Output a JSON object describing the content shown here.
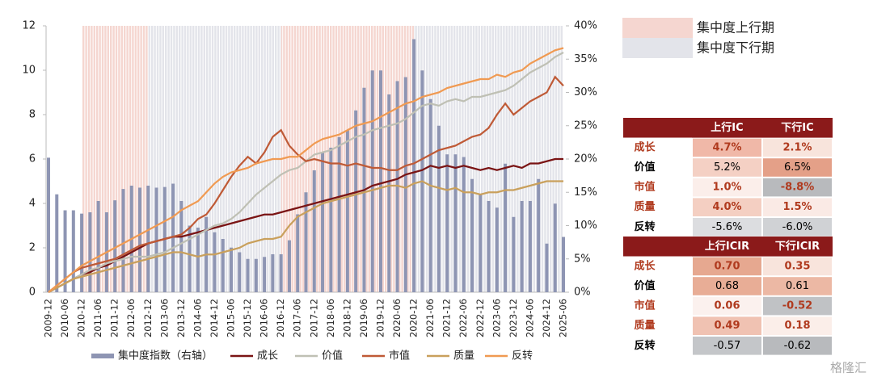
{
  "chart_data": {
    "type": "combo",
    "categories": [
      "2009-12",
      null,
      "2010-06",
      null,
      "2010-12",
      null,
      "2011-06",
      null,
      "2011-12",
      null,
      "2012-06",
      null,
      "2012-12",
      null,
      "2013-06",
      null,
      "2013-12",
      null,
      "2014-06",
      null,
      "2014-12",
      null,
      "2015-06",
      null,
      "2015-12",
      null,
      "2016-06",
      null,
      "2016-12",
      null,
      "2017-06",
      null,
      "2017-12",
      null,
      "2018-06",
      null,
      "2018-12",
      null,
      "2019-06",
      null,
      "2019-12",
      null,
      "2020-06",
      null,
      "2020-12",
      null,
      "2021-06",
      null,
      "2021-12",
      null,
      "2022-06",
      null,
      "2022-12",
      null,
      "2023-06",
      null,
      "2023-12",
      null,
      "2024-06",
      null,
      "2024-12",
      null,
      "2025-06"
    ],
    "ylim": [
      0,
      12
    ],
    "yticks": [
      0,
      2,
      4,
      6,
      8,
      10,
      12
    ],
    "y2lim": [
      0,
      40
    ],
    "y2ticks": [
      {
        "value": 0,
        "label": "0%"
      },
      {
        "value": 5,
        "label": "5%"
      },
      {
        "value": 10,
        "label": "10%"
      },
      {
        "value": 15,
        "label": "15%"
      },
      {
        "value": 20,
        "label": "20%"
      },
      {
        "value": 25,
        "label": "25%"
      },
      {
        "value": 30,
        "label": "30%"
      },
      {
        "value": 35,
        "label": "35%"
      },
      {
        "value": 40,
        "label": "40%"
      }
    ],
    "regimes": [
      {
        "name": "集中度上行期",
        "color": "#f5d6d0",
        "periods": [
          [
            "2010-12",
            "2012-12"
          ],
          [
            "2016-12",
            "2020-12"
          ]
        ]
      },
      {
        "name": "集中度下行期",
        "color": "#e3e4ea",
        "periods": [
          [
            "2012-12",
            "2016-12"
          ],
          [
            "2020-12",
            "2025-06"
          ]
        ]
      }
    ],
    "series": [
      {
        "name": "集中度指数（右轴）",
        "type": "bar",
        "axis": "y2",
        "color": "#8e95b3",
        "values": [
          20.2,
          14.7,
          12.3,
          12.3,
          11.8,
          12,
          13.7,
          12,
          13.8,
          15.5,
          16,
          15.7,
          16,
          15.7,
          15.8,
          16.3,
          13.7,
          10,
          9.7,
          11.3,
          9,
          8,
          6.7,
          6,
          5,
          5,
          5.3,
          5.7,
          5.7,
          7.8,
          11.7,
          15,
          18.3,
          21,
          21.7,
          23.3,
          24.3,
          27.3,
          30.7,
          33.3,
          33.3,
          29.7,
          31.7,
          32.3,
          38,
          33.3,
          29,
          25,
          20.7,
          20.7,
          20.3,
          17,
          14.7,
          13.7,
          12.7,
          19.3,
          11.3,
          13.7,
          13.7,
          17,
          7.3,
          13.3,
          8.3
        ]
      },
      {
        "name": "成长",
        "type": "line",
        "color": "#7a1414",
        "values": [
          0,
          0.2,
          0.4,
          0.6,
          0.8,
          0.9,
          1.1,
          1.2,
          1.4,
          1.6,
          1.8,
          2.0,
          2.2,
          2.3,
          2.4,
          2.5,
          2.5,
          2.6,
          2.7,
          2.8,
          2.9,
          3.0,
          3.1,
          3.2,
          3.3,
          3.4,
          3.5,
          3.5,
          3.6,
          3.7,
          3.8,
          3.9,
          4.0,
          4.1,
          4.2,
          4.3,
          4.4,
          4.5,
          4.6,
          4.8,
          4.9,
          5.0,
          5.1,
          5.3,
          5.4,
          5.5,
          5.7,
          5.6,
          5.7,
          5.6,
          5.7,
          5.6,
          5.5,
          5.6,
          5.5,
          5.6,
          5.7,
          5.6,
          5.8,
          5.8,
          5.9,
          6.0,
          6.0
        ]
      },
      {
        "name": "价值",
        "type": "line",
        "color": "#bfc0b4",
        "values": [
          0,
          0.2,
          0.4,
          0.6,
          0.8,
          1.0,
          1.1,
          1.3,
          1.4,
          1.5,
          1.6,
          1.6,
          1.6,
          1.7,
          1.8,
          2.0,
          2.2,
          2.4,
          2.6,
          2.8,
          3.0,
          3.1,
          3.3,
          3.6,
          4.0,
          4.4,
          4.7,
          5.0,
          5.3,
          5.5,
          5.6,
          5.9,
          6.2,
          6.3,
          6.4,
          6.6,
          6.8,
          7.0,
          7.1,
          7.3,
          7.4,
          7.5,
          7.6,
          7.8,
          8.1,
          8.4,
          8.5,
          8.4,
          8.6,
          8.7,
          8.6,
          8.8,
          8.8,
          8.9,
          9.0,
          9.1,
          9.3,
          9.6,
          9.9,
          10.1,
          10.3,
          10.6,
          10.8
        ]
      },
      {
        "name": "市值",
        "type": "line",
        "color": "#bf5a36",
        "values": [
          0,
          0.3,
          0.6,
          0.9,
          1.1,
          1.2,
          1.3,
          1.4,
          1.5,
          1.7,
          1.9,
          2.1,
          2.2,
          2.3,
          2.4,
          2.5,
          2.6,
          2.9,
          3.3,
          3.5,
          4.0,
          4.6,
          5.2,
          5.7,
          6.1,
          5.8,
          6.3,
          7.0,
          7.3,
          6.6,
          6.2,
          5.9,
          6.0,
          5.9,
          5.8,
          5.8,
          5.7,
          5.8,
          5.7,
          5.6,
          5.6,
          5.5,
          5.5,
          5.7,
          5.8,
          6.0,
          6.2,
          6.4,
          6.5,
          6.6,
          6.8,
          7.0,
          7.1,
          7.4,
          8.0,
          8.5,
          8.0,
          8.3,
          8.6,
          8.8,
          9.0,
          9.7,
          9.3
        ]
      },
      {
        "name": "质量",
        "type": "line",
        "color": "#c9a05c",
        "values": [
          0,
          0.2,
          0.4,
          0.6,
          0.7,
          0.8,
          0.9,
          1.0,
          1.1,
          1.2,
          1.3,
          1.4,
          1.5,
          1.6,
          1.7,
          1.8,
          1.8,
          1.7,
          1.6,
          1.7,
          1.7,
          1.8,
          1.9,
          2.0,
          2.2,
          2.3,
          2.4,
          2.4,
          2.5,
          3.0,
          3.4,
          3.6,
          3.8,
          4.0,
          4.1,
          4.2,
          4.3,
          4.4,
          4.5,
          4.6,
          4.7,
          4.8,
          4.8,
          4.7,
          4.9,
          5.0,
          4.8,
          4.7,
          4.6,
          4.7,
          4.5,
          4.5,
          4.4,
          4.5,
          4.5,
          4.6,
          4.6,
          4.7,
          4.8,
          4.9,
          5.0,
          5.0,
          5.0
        ]
      },
      {
        "name": "反转",
        "type": "line",
        "color": "#f09a52",
        "values": [
          0,
          0.3,
          0.6,
          0.9,
          1.2,
          1.4,
          1.6,
          1.8,
          2.0,
          2.2,
          2.4,
          2.6,
          2.8,
          3.0,
          3.2,
          3.4,
          3.7,
          3.9,
          4.1,
          4.5,
          4.9,
          5.2,
          5.4,
          5.5,
          5.6,
          5.8,
          5.9,
          6.0,
          6.0,
          6.1,
          6.1,
          6.4,
          6.7,
          6.9,
          7.0,
          7.1,
          7.3,
          7.5,
          7.6,
          7.7,
          7.9,
          8.1,
          8.3,
          8.5,
          8.6,
          8.8,
          8.9,
          9.0,
          9.2,
          9.3,
          9.4,
          9.5,
          9.6,
          9.6,
          9.8,
          9.7,
          9.9,
          10.0,
          10.3,
          10.5,
          10.7,
          10.9,
          11.0
        ]
      }
    ]
  },
  "tables": [
    {
      "header": [
        "上行IC",
        "下行IC"
      ],
      "header_color": "#8b1a1a",
      "rows": [
        {
          "label": "成长",
          "text_color": "#b03a1e",
          "cells": [
            "4.7%",
            "2.1%"
          ],
          "cell_colors": [
            "#f0b8a8",
            "#f8e4dc"
          ]
        },
        {
          "label": "价值",
          "text_color": "#000000",
          "cells": [
            "5.2%",
            "6.5%"
          ],
          "cell_colors": [
            "#f4d0c4",
            "#e4a088"
          ]
        },
        {
          "label": "市值",
          "text_color": "#b03a1e",
          "cells": [
            "1.0%",
            "-8.8%"
          ],
          "cell_colors": [
            "#fbeeea",
            "#b8babd"
          ]
        },
        {
          "label": "质量",
          "text_color": "#b03a1e",
          "cells": [
            "4.0%",
            "1.5%"
          ],
          "cell_colors": [
            "#f4cfc2",
            "#faeae5"
          ]
        },
        {
          "label": "反转",
          "text_color": "#000000",
          "cells": [
            "-5.6%",
            "-6.0%"
          ],
          "cell_colors": [
            "#dcdde0",
            "#d0d2d5"
          ]
        }
      ]
    },
    {
      "header": [
        "上行ICIR",
        "下行ICIR"
      ],
      "header_color": "#8b1a1a",
      "rows": [
        {
          "label": "成长",
          "text_color": "#b03a1e",
          "cells": [
            "0.70",
            "0.35"
          ],
          "cell_colors": [
            "#e6a890",
            "#f8e4dc"
          ]
        },
        {
          "label": "价值",
          "text_color": "#000000",
          "cells": [
            "0.68",
            "0.61"
          ],
          "cell_colors": [
            "#e8ad96",
            "#ecb8a4"
          ]
        },
        {
          "label": "市值",
          "text_color": "#b03a1e",
          "cells": [
            "0.06",
            "-0.52"
          ],
          "cell_colors": [
            "#fbf1ee",
            "#c0c2c5"
          ]
        },
        {
          "label": "质量",
          "text_color": "#b03a1e",
          "cells": [
            "0.49",
            "0.18"
          ],
          "cell_colors": [
            "#f0c2b2",
            "#fbeee9"
          ]
        },
        {
          "label": "反转",
          "text_color": "#000000",
          "cells": [
            "-0.57",
            "-0.62"
          ],
          "cell_colors": [
            "#c4c6c9",
            "#b8babd"
          ]
        }
      ]
    }
  ],
  "watermark": "格隆汇"
}
